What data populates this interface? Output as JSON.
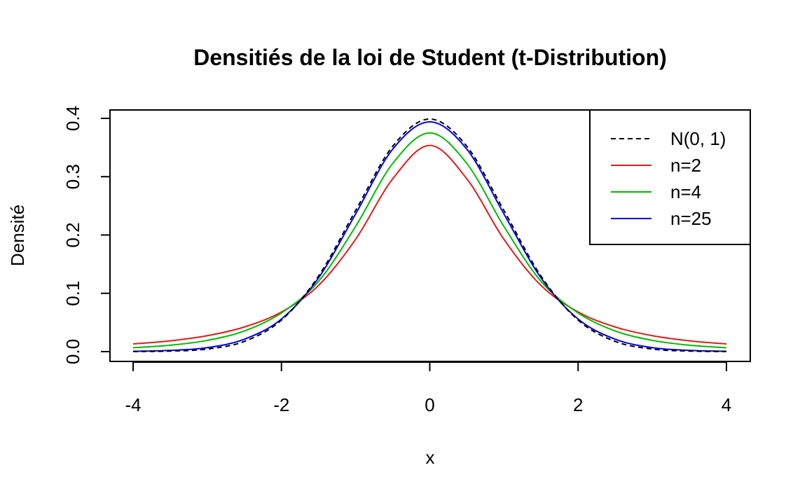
{
  "chart_data": {
    "type": "line",
    "title": "Densitiés de la loi de Student (t-Distribution)",
    "xlabel": "x",
    "ylabel": "Densité",
    "xlim": [
      -4,
      4
    ],
    "ylim": [
      0,
      0.4
    ],
    "x_ticks": [
      -4,
      -2,
      0,
      2,
      4
    ],
    "x_tick_labels": [
      "-4",
      "-2",
      "0",
      "2",
      "4"
    ],
    "y_ticks": [
      0,
      0.1,
      0.2,
      0.3,
      0.4
    ],
    "y_tick_labels": [
      "0.0",
      "0.1",
      "0.2",
      "0.3",
      "0.4"
    ],
    "grid": false,
    "legend_position": "top-right",
    "x": [
      -4,
      -3.5,
      -3,
      -2.5,
      -2,
      -1.5,
      -1,
      -0.5,
      0,
      0.5,
      1,
      1.5,
      2,
      2.5,
      3,
      3.5,
      4
    ],
    "series": [
      {
        "name": "N(0, 1)",
        "color": "#000000",
        "dashed": true,
        "values": [
          0.0001,
          0.0009,
          0.0044,
          0.0175,
          0.054,
          0.1295,
          0.242,
          0.3521,
          0.3989,
          0.3521,
          0.242,
          0.1295,
          0.054,
          0.0175,
          0.0044,
          0.0009,
          0.0001
        ]
      },
      {
        "name": "n=2",
        "color": "#e41a1c",
        "dashed": false,
        "values": [
          0.0131,
          0.0185,
          0.0273,
          0.0422,
          0.068,
          0.1134,
          0.1925,
          0.2962,
          0.3536,
          0.2962,
          0.1925,
          0.1134,
          0.068,
          0.0422,
          0.0273,
          0.0185,
          0.0131
        ]
      },
      {
        "name": "n=4",
        "color": "#00bb00",
        "dashed": false,
        "values": [
          0.0067,
          0.0109,
          0.0193,
          0.0354,
          0.0663,
          0.1205,
          0.2147,
          0.3226,
          0.375,
          0.3226,
          0.2147,
          0.1205,
          0.0663,
          0.0354,
          0.0193,
          0.0109,
          0.0067
        ]
      },
      {
        "name": "n=25",
        "color": "#0000ee",
        "dashed": false,
        "values": [
          0.0006,
          0.0021,
          0.0068,
          0.0212,
          0.0559,
          0.1264,
          0.2361,
          0.3471,
          0.394,
          0.3471,
          0.2361,
          0.1264,
          0.0559,
          0.0212,
          0.0068,
          0.0021,
          0.0006
        ]
      }
    ]
  }
}
